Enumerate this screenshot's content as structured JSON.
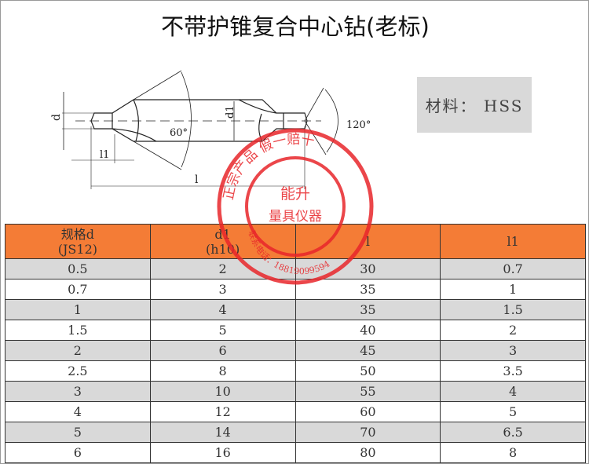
{
  "title": "不带护锥复合中心钻(老标)",
  "material": "材料： HSS",
  "diagram": {
    "d": "d",
    "d1": "d1",
    "l1": "l1",
    "l": "l",
    "angle1": "60°",
    "angle2": "120°"
  },
  "table": {
    "headers": [
      [
        "规格d",
        "(JS12)"
      ],
      [
        "d1",
        "(h10)"
      ],
      [
        "l",
        ""
      ],
      [
        "l1",
        ""
      ]
    ],
    "rows": [
      [
        "0.5",
        "2",
        "30",
        "0.7"
      ],
      [
        "0.7",
        "3",
        "35",
        "1"
      ],
      [
        "1",
        "4",
        "35",
        "1.5"
      ],
      [
        "1.5",
        "5",
        "40",
        "2"
      ],
      [
        "2",
        "6",
        "45",
        "3"
      ],
      [
        "2.5",
        "8",
        "50",
        "3.5"
      ],
      [
        "3",
        "10",
        "55",
        "4"
      ],
      [
        "4",
        "12",
        "60",
        "5"
      ],
      [
        "5",
        "14",
        "70",
        "6.5"
      ],
      [
        "6",
        "16",
        "80",
        "8"
      ]
    ]
  },
  "stamp": {
    "arc_text": "正宗产品 假一赔十",
    "name": "能升",
    "sub": "量具仪器",
    "phone": "联系电话：18819099594",
    "color": "#e8262a"
  },
  "colors": {
    "header": "#f47c36",
    "stripe": "#d9d9d9"
  }
}
